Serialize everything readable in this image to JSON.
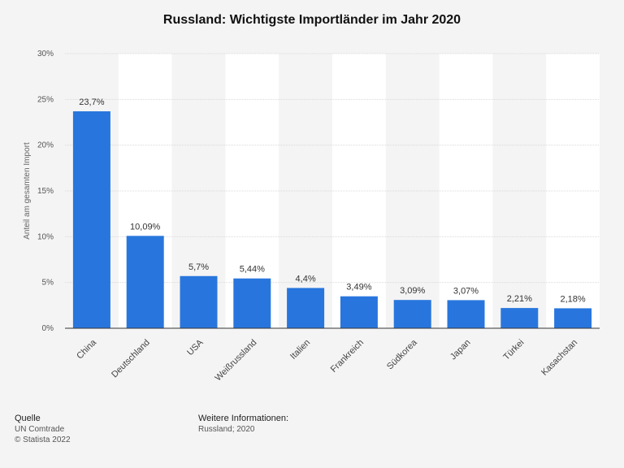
{
  "chart_data": {
    "type": "bar",
    "title": "Russland: Wichtigste Importländer im Jahr 2020",
    "ylabel": "Anteil am gesamten Import",
    "xlabel": "",
    "categories": [
      "China",
      "Deutschland",
      "USA",
      "Weißrussland",
      "Italien",
      "Frankreich",
      "Südkorea",
      "Japan",
      "Türkei",
      "Kasachstan"
    ],
    "values": [
      23.7,
      10.09,
      5.7,
      5.44,
      4.4,
      3.49,
      3.09,
      3.07,
      2.21,
      2.18
    ],
    "value_labels": [
      "23,7%",
      "10,09%",
      "5,7%",
      "5,44%",
      "4,4%",
      "3,49%",
      "3,09%",
      "3,07%",
      "2,21%",
      "2,18%"
    ],
    "ylim": [
      0,
      30
    ],
    "yticks": [
      0,
      5,
      10,
      15,
      20,
      25,
      30
    ],
    "ytick_labels": [
      "0%",
      "5%",
      "10%",
      "15%",
      "20%",
      "25%",
      "30%"
    ],
    "grid": true,
    "legend": "none",
    "bar_color": "#2876dd"
  },
  "footer": {
    "source_heading": "Quelle",
    "source_lines": [
      "UN Comtrade",
      "© Statista 2022"
    ],
    "info_heading": "Weitere Informationen:",
    "info_lines": [
      "Russland; 2020"
    ]
  }
}
